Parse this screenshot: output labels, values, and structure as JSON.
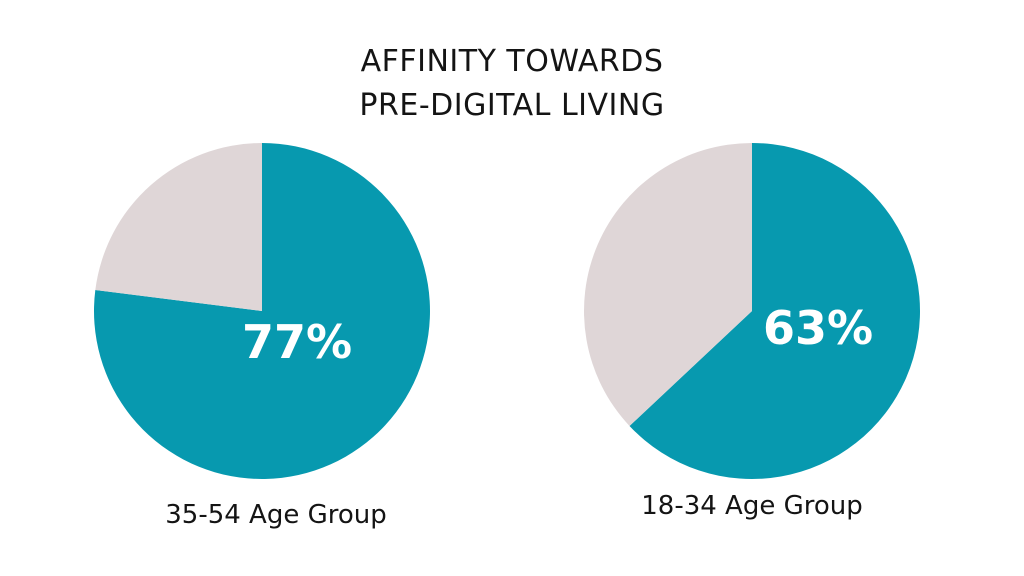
{
  "chart_data": {
    "type": "pie",
    "title_lines": [
      "AFFINITY TOWARDS",
      "PRE-DIGITAL LIVING"
    ],
    "colors": {
      "primary": "#0799AF",
      "remainder": "#DFD6D7",
      "label": "#FFFFFF",
      "text": "#141414"
    },
    "pies": [
      {
        "category": "35-54 Age Group",
        "value_label": "77%",
        "slices": [
          {
            "name": "affinity",
            "value": 77
          },
          {
            "name": "remainder",
            "value": 23
          }
        ]
      },
      {
        "category": "18-34 Age Group",
        "value_label": "63%",
        "slices": [
          {
            "name": "affinity",
            "value": 63
          },
          {
            "name": "remainder",
            "value": 37
          }
        ]
      }
    ]
  }
}
